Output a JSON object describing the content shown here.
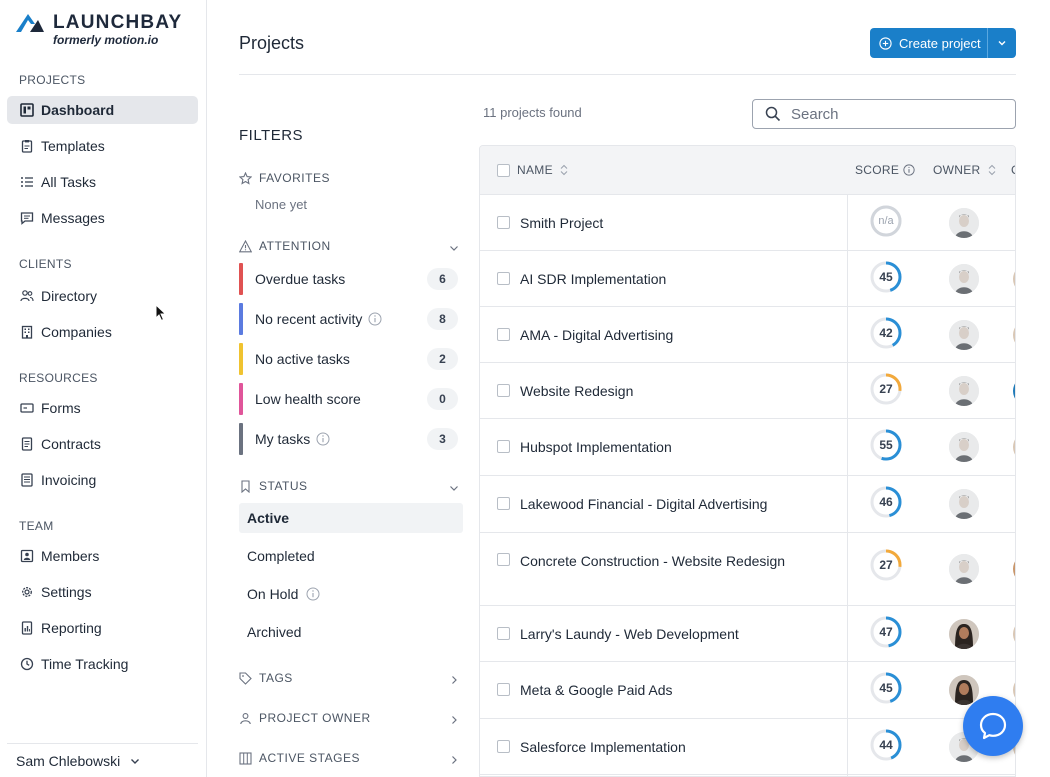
{
  "brand": {
    "name": "LAUNCHBAY",
    "subtitle": "formerly motion.io",
    "color": "#1a7fc9"
  },
  "sidebar": {
    "sections": [
      {
        "title": "PROJECTS",
        "items": [
          {
            "label": "Dashboard",
            "icon": "dashboard-icon",
            "active": true
          },
          {
            "label": "Templates",
            "icon": "clipboard-icon"
          },
          {
            "label": "All Tasks",
            "icon": "list-icon"
          },
          {
            "label": "Messages",
            "icon": "message-icon"
          }
        ]
      },
      {
        "title": "CLIENTS",
        "items": [
          {
            "label": "Directory",
            "icon": "users-icon"
          },
          {
            "label": "Companies",
            "icon": "building-icon"
          }
        ]
      },
      {
        "title": "RESOURCES",
        "items": [
          {
            "label": "Forms",
            "icon": "form-icon"
          },
          {
            "label": "Contracts",
            "icon": "document-icon"
          },
          {
            "label": "Invoicing",
            "icon": "invoice-icon"
          }
        ]
      },
      {
        "title": "TEAM",
        "items": [
          {
            "label": "Members",
            "icon": "id-card-icon"
          },
          {
            "label": "Settings",
            "icon": "gear-icon"
          },
          {
            "label": "Reporting",
            "icon": "report-icon"
          },
          {
            "label": "Time Tracking",
            "icon": "clock-icon"
          }
        ]
      }
    ],
    "user": "Sam Chlebowski"
  },
  "header": {
    "title": "Projects",
    "create_label": "Create project"
  },
  "filters": {
    "title": "FILTERS",
    "favorites": {
      "label": "FAVORITES",
      "empty": "None yet"
    },
    "attention": {
      "label": "ATTENTION",
      "items": [
        {
          "label": "Overdue tasks",
          "count": "6",
          "color": "#e05252",
          "info": false
        },
        {
          "label": "No recent activity",
          "count": "8",
          "color": "#5b7be0",
          "info": true
        },
        {
          "label": "No active tasks",
          "count": "2",
          "color": "#f0c330",
          "info": false
        },
        {
          "label": "Low health score",
          "count": "0",
          "color": "#e0559a",
          "info": false
        },
        {
          "label": "My tasks",
          "count": "3",
          "color": "#6b7280",
          "info": true
        }
      ]
    },
    "status": {
      "label": "STATUS",
      "items": [
        {
          "label": "Active",
          "active": true,
          "info": false
        },
        {
          "label": "Completed",
          "active": false,
          "info": false
        },
        {
          "label": "On Hold",
          "active": false,
          "info": true
        },
        {
          "label": "Archived",
          "active": false,
          "info": false
        }
      ]
    },
    "tags": {
      "label": "TAGS"
    },
    "project_owner": {
      "label": "PROJECT OWNER"
    },
    "active_stages": {
      "label": "ACTIVE STAGES"
    }
  },
  "results": {
    "count_text": "11 projects found",
    "search_placeholder": "Search",
    "columns": {
      "name": "NAME",
      "score": "SCORE",
      "owner": "OWNER",
      "peek": "C"
    },
    "rows": [
      {
        "name": "Smith Project",
        "score": "n/a",
        "score_pct": 0,
        "score_color": "#d1d5db",
        "owner": "male",
        "peek": ""
      },
      {
        "name": "AI SDR Implementation",
        "score": "45",
        "score_pct": 45,
        "score_color": "#2a8fd6",
        "owner": "male",
        "peek": "#d9c7b5"
      },
      {
        "name": "AMA - Digital Advertising",
        "score": "42",
        "score_pct": 42,
        "score_color": "#2a8fd6",
        "owner": "male",
        "peek": "#d9c7b5"
      },
      {
        "name": "Website Redesign",
        "score": "27",
        "score_pct": 27,
        "score_color": "#f2a93b",
        "owner": "male",
        "peek": "#1f7ab8"
      },
      {
        "name": "Hubspot Implementation",
        "score": "55",
        "score_pct": 55,
        "score_color": "#2a8fd6",
        "owner": "male",
        "peek": "#d9c7b5"
      },
      {
        "name": "Lakewood Financial - Digital Advertising",
        "score": "46",
        "score_pct": 46,
        "score_color": "#2a8fd6",
        "owner": "male",
        "peek": ""
      },
      {
        "name": "Concrete Construction - Website Redesign",
        "score": "27",
        "score_pct": 27,
        "score_color": "#f2a93b",
        "owner": "male",
        "peek": "#c9966b"
      },
      {
        "name": "Larry's Laundy - Web Development",
        "score": "47",
        "score_pct": 47,
        "score_color": "#2a8fd6",
        "owner": "female",
        "peek": "#d9c7b5"
      },
      {
        "name": "Meta & Google Paid Ads",
        "score": "45",
        "score_pct": 45,
        "score_color": "#2a8fd6",
        "owner": "female",
        "peek": "#d9c7b5"
      },
      {
        "name": "Salesforce Implementation",
        "score": "44",
        "score_pct": 44,
        "score_color": "#2a8fd6",
        "owner": "male",
        "peek": "#d9c7b5"
      }
    ]
  }
}
